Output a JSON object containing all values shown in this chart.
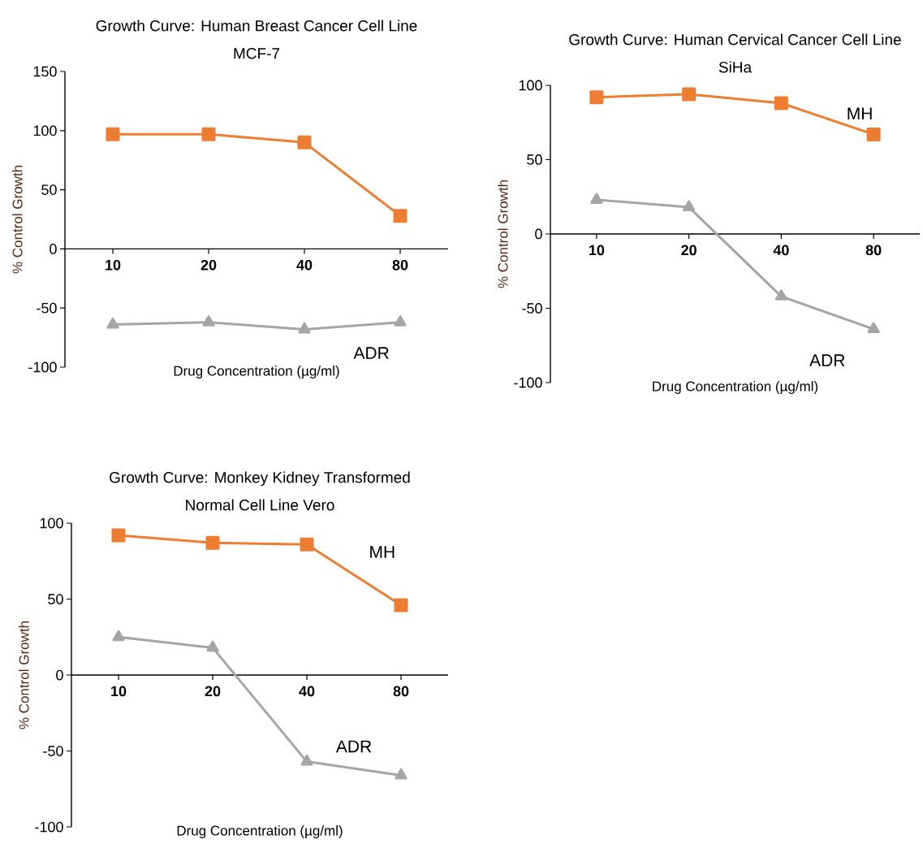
{
  "chart_data": [
    {
      "type": "line",
      "title": "Growth Curve: Human Breast Cancer Cell Line",
      "subtitle": "MCF-7",
      "xlabel": "Drug Concentration (µg/ml)",
      "ylabel": "% Control Growth",
      "categories": [
        "10",
        "20",
        "40",
        "80"
      ],
      "ylim": [
        -100,
        150
      ],
      "yticks": [
        -100,
        -50,
        0,
        50,
        100,
        150
      ],
      "grid": false,
      "legend": false,
      "series": [
        {
          "color": "#ed7d31",
          "marker": "square",
          "values": [
            97,
            97,
            90,
            28
          ]
        },
        {
          "name": "ADR",
          "color": "#a5a5a5",
          "marker": "triangle",
          "values": [
            -64,
            -62,
            -68,
            -62
          ]
        }
      ]
    },
    {
      "type": "line",
      "title": "Growth Curve: Human Cervical Cancer Cell Line",
      "subtitle": "SiHa",
      "xlabel": "Drug Concentration (µg/ml)",
      "ylabel": "% Control Growth",
      "categories": [
        "10",
        "20",
        "40",
        "80"
      ],
      "ylim": [
        -100,
        100
      ],
      "yticks": [
        -100,
        -50,
        0,
        50,
        100
      ],
      "grid": false,
      "legend": false,
      "series": [
        {
          "name": "MH",
          "color": "#ed7d31",
          "marker": "square",
          "values": [
            92,
            94,
            88,
            67
          ]
        },
        {
          "name": "ADR",
          "color": "#a5a5a5",
          "marker": "triangle",
          "values": [
            23,
            18,
            -42,
            -64
          ]
        }
      ]
    },
    {
      "type": "line",
      "title": "Growth Curve: Monkey Kidney Transformed",
      "subtitle": "Normal Cell Line Vero",
      "xlabel": "Drug Concentration (µg/ml)",
      "ylabel": "% Control Growth",
      "categories": [
        "10",
        "20",
        "40",
        "80"
      ],
      "ylim": [
        -100,
        100
      ],
      "yticks": [
        -100,
        -50,
        0,
        50,
        100
      ],
      "grid": false,
      "legend": false,
      "series": [
        {
          "name": "MH",
          "color": "#ed7d31",
          "marker": "square",
          "values": [
            92,
            87,
            86,
            46
          ]
        },
        {
          "name": "ADR",
          "color": "#a5a5a5",
          "marker": "triangle",
          "values": [
            25,
            18,
            -57,
            -66
          ]
        }
      ]
    }
  ]
}
